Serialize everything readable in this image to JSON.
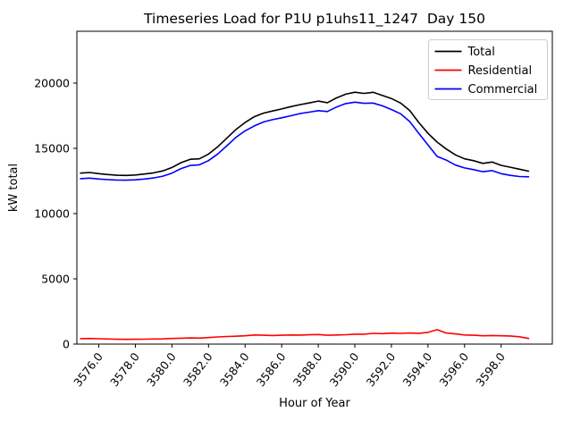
{
  "figure": {
    "title": "Timeseries Load for P1U p1uhs11_1247  Day 150",
    "xlabel": "Hour of Year",
    "ylabel": "kW total",
    "background_color": "#ffffff"
  },
  "chart_data": {
    "type": "line",
    "title": "Timeseries Load for P1U p1uhs11_1247  Day 150",
    "xlabel": "Hour of Year",
    "ylabel": "kW total",
    "xlim": [
      3574.8,
      3600.8
    ],
    "ylim": [
      0,
      23970
    ],
    "grid": false,
    "xticks": [
      3576,
      3578,
      3580,
      3582,
      3584,
      3586,
      3588,
      3590,
      3592,
      3594,
      3596,
      3598
    ],
    "xtick_labels": [
      "3576.0",
      "3578.0",
      "3580.0",
      "3582.0",
      "3584.0",
      "3586.0",
      "3588.0",
      "3590.0",
      "3592.0",
      "3594.0",
      "3596.0",
      "3598.0"
    ],
    "yticks": [
      0,
      5000,
      10000,
      15000,
      20000
    ],
    "ytick_labels": [
      "0",
      "5000",
      "10000",
      "15000",
      "20000"
    ],
    "legend": {
      "position": "upper right",
      "border_color": "#cccccc",
      "entries": [
        "Total",
        "Residential",
        "Commercial"
      ]
    },
    "x": [
      3575.0,
      3575.5,
      3576.0,
      3576.5,
      3577.0,
      3577.5,
      3578.0,
      3578.5,
      3579.0,
      3579.5,
      3580.0,
      3580.5,
      3581.0,
      3581.5,
      3582.0,
      3582.5,
      3583.0,
      3583.5,
      3584.0,
      3584.5,
      3585.0,
      3585.5,
      3586.0,
      3586.5,
      3587.0,
      3587.5,
      3588.0,
      3588.5,
      3589.0,
      3589.5,
      3590.0,
      3590.5,
      3591.0,
      3591.5,
      3592.0,
      3592.5,
      3593.0,
      3593.5,
      3594.0,
      3594.5,
      3595.0,
      3595.5,
      3596.0,
      3596.5,
      3597.0,
      3597.5,
      3598.0,
      3598.5,
      3599.0,
      3599.5
    ],
    "series": [
      {
        "name": "Total",
        "color": "#000000",
        "values": [
          13100,
          13150,
          13060,
          12990,
          12940,
          12920,
          12960,
          13030,
          13120,
          13270,
          13530,
          13900,
          14160,
          14200,
          14560,
          15120,
          15780,
          16440,
          16980,
          17420,
          17700,
          17860,
          18020,
          18200,
          18350,
          18480,
          18620,
          18500,
          18870,
          19150,
          19300,
          19210,
          19290,
          19060,
          18820,
          18470,
          17900,
          16980,
          16150,
          15480,
          14950,
          14500,
          14200,
          14050,
          13850,
          13950,
          13700,
          13550,
          13400,
          13250
        ]
      },
      {
        "name": "Residential",
        "color": "#ff0000",
        "values": [
          420,
          430,
          410,
          390,
          370,
          360,
          370,
          380,
          390,
          400,
          430,
          450,
          470,
          460,
          500,
          550,
          580,
          600,
          640,
          700,
          680,
          660,
          680,
          700,
          690,
          710,
          730,
          680,
          700,
          720,
          760,
          760,
          820,
          800,
          840,
          820,
          850,
          830,
          900,
          1100,
          850,
          780,
          700,
          680,
          640,
          660,
          640,
          620,
          560,
          430
        ]
      },
      {
        "name": "Commercial",
        "color": "#0000ff",
        "values": [
          12680,
          12720,
          12650,
          12600,
          12570,
          12560,
          12590,
          12650,
          12730,
          12870,
          13100,
          13450,
          13690,
          13740,
          14060,
          14570,
          15200,
          15840,
          16340,
          16720,
          17020,
          17200,
          17340,
          17500,
          17660,
          17770,
          17890,
          17820,
          18170,
          18430,
          18540,
          18450,
          18470,
          18260,
          17980,
          17650,
          17050,
          16150,
          15250,
          14380,
          14100,
          13720,
          13500,
          13370,
          13210,
          13290,
          13060,
          12930,
          12840,
          12820
        ]
      }
    ]
  }
}
